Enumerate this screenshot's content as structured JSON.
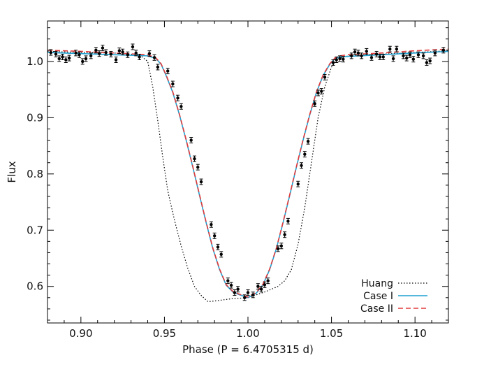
{
  "chart_data": {
    "type": "scatter",
    "title": "",
    "xlabel": "Phase (P = 6.4705315 d)",
    "ylabel": "Flux",
    "xlim": [
      0.88,
      1.12
    ],
    "ylim": [
      0.535,
      1.072
    ],
    "x_ticks": [
      0.9,
      0.95,
      1.0,
      1.05,
      1.1
    ],
    "x_tick_labels": [
      "0.90",
      "0.95",
      "1.00",
      "1.05",
      "1.10"
    ],
    "y_ticks": [
      0.6,
      0.7,
      0.8,
      0.9,
      1.0
    ],
    "y_tick_labels": [
      "0.6",
      "0.7",
      "0.8",
      "0.9",
      "1.0"
    ],
    "grid": false,
    "legend_position": "bottom-right",
    "series": [
      {
        "name": "Huang",
        "kind": "line",
        "style": "dotted",
        "color": "#000000",
        "x": [
          0.88,
          0.9,
          0.92,
          0.935,
          0.94,
          0.943,
          0.946,
          0.949,
          0.952,
          0.956,
          0.96,
          0.964,
          0.968,
          0.972,
          0.976,
          0.98,
          0.99,
          1.0,
          1.01,
          1.018,
          1.022,
          1.026,
          1.03,
          1.034,
          1.038,
          1.042,
          1.046,
          1.05,
          1.054,
          1.06,
          1.08,
          1.1,
          1.12
        ],
        "y": [
          1.018,
          1.016,
          1.015,
          1.012,
          1.0,
          0.955,
          0.895,
          0.83,
          0.77,
          0.718,
          0.672,
          0.632,
          0.6,
          0.584,
          0.573,
          0.574,
          0.578,
          0.58,
          0.59,
          0.6,
          0.61,
          0.63,
          0.675,
          0.74,
          0.82,
          0.9,
          0.955,
          0.99,
          1.005,
          1.01,
          1.013,
          1.016,
          1.019
        ]
      },
      {
        "name": "Case I",
        "kind": "line",
        "style": "solid",
        "color": "#1fa0d0",
        "x": [
          0.88,
          0.9,
          0.92,
          0.94,
          0.945,
          0.948,
          0.951,
          0.955,
          0.959,
          0.963,
          0.967,
          0.971,
          0.975,
          0.979,
          0.983,
          0.987,
          0.991,
          0.995,
          1.0,
          1.005,
          1.009,
          1.013,
          1.017,
          1.021,
          1.025,
          1.029,
          1.033,
          1.037,
          1.041,
          1.045,
          1.049,
          1.052,
          1.055,
          1.06,
          1.08,
          1.1,
          1.12
        ],
        "y": [
          1.016,
          1.014,
          1.012,
          1.01,
          1.005,
          0.995,
          0.975,
          0.945,
          0.905,
          0.86,
          0.812,
          0.762,
          0.713,
          0.667,
          0.63,
          0.602,
          0.59,
          0.585,
          0.58,
          0.588,
          0.603,
          0.63,
          0.667,
          0.713,
          0.762,
          0.812,
          0.86,
          0.905,
          0.945,
          0.975,
          0.995,
          1.005,
          1.008,
          1.009,
          1.012,
          1.015,
          1.018
        ]
      },
      {
        "name": "Case II",
        "kind": "line",
        "style": "dashed",
        "color": "#e23b3b",
        "x": [
          0.88,
          0.9,
          0.92,
          0.94,
          0.945,
          0.948,
          0.951,
          0.955,
          0.959,
          0.963,
          0.967,
          0.971,
          0.975,
          0.979,
          0.983,
          0.987,
          0.991,
          0.995,
          1.0,
          1.005,
          1.009,
          1.013,
          1.017,
          1.021,
          1.025,
          1.029,
          1.033,
          1.037,
          1.041,
          1.045,
          1.049,
          1.052,
          1.055,
          1.06,
          1.08,
          1.1,
          1.12
        ],
        "y": [
          1.02,
          1.018,
          1.015,
          1.012,
          1.006,
          0.996,
          0.976,
          0.946,
          0.906,
          0.861,
          0.813,
          0.763,
          0.714,
          0.668,
          0.631,
          0.603,
          0.591,
          0.586,
          0.581,
          0.589,
          0.604,
          0.631,
          0.668,
          0.714,
          0.763,
          0.813,
          0.861,
          0.906,
          0.946,
          0.976,
          0.996,
          1.006,
          1.01,
          1.012,
          1.015,
          1.019,
          1.022
        ]
      },
      {
        "name": "",
        "kind": "points",
        "color": "#000000",
        "x": [
          0.882,
          0.885,
          0.887,
          0.889,
          0.891,
          0.893,
          0.897,
          0.899,
          0.901,
          0.903,
          0.906,
          0.909,
          0.911,
          0.913,
          0.915,
          0.918,
          0.921,
          0.923,
          0.925,
          0.928,
          0.931,
          0.933,
          0.935,
          0.941,
          0.944,
          0.946,
          0.952,
          0.955,
          0.958,
          0.96,
          0.966,
          0.968,
          0.97,
          0.972,
          0.978,
          0.98,
          0.982,
          0.984,
          0.988,
          0.99,
          0.992,
          0.994,
          0.998,
          1.0,
          1.003,
          1.006,
          1.008,
          1.01,
          1.012,
          1.018,
          1.02,
          1.022,
          1.024,
          1.03,
          1.032,
          1.034,
          1.036,
          1.04,
          1.042,
          1.044,
          1.046,
          1.051,
          1.053,
          1.055,
          1.057,
          1.062,
          1.064,
          1.066,
          1.068,
          1.071,
          1.074,
          1.077,
          1.079,
          1.081,
          1.085,
          1.087,
          1.089,
          1.093,
          1.095,
          1.097,
          1.099,
          1.102,
          1.105,
          1.107,
          1.109,
          1.112,
          1.117
        ],
        "y": [
          1.016,
          1.013,
          1.005,
          1.008,
          1.003,
          1.006,
          1.015,
          1.012,
          1.0,
          1.005,
          1.01,
          1.02,
          1.014,
          1.024,
          1.016,
          1.013,
          1.003,
          1.019,
          1.017,
          1.012,
          1.026,
          1.015,
          1.008,
          1.014,
          1.007,
          0.99,
          0.983,
          0.96,
          0.935,
          0.92,
          0.86,
          0.827,
          0.812,
          0.786,
          0.71,
          0.69,
          0.67,
          0.657,
          0.61,
          0.602,
          0.589,
          0.595,
          0.58,
          0.589,
          0.585,
          0.6,
          0.595,
          0.603,
          0.61,
          0.667,
          0.672,
          0.692,
          0.716,
          0.782,
          0.815,
          0.835,
          0.858,
          0.925,
          0.944,
          0.947,
          0.972,
          0.998,
          1.003,
          1.005,
          1.004,
          1.01,
          1.017,
          1.015,
          1.01,
          1.018,
          1.007,
          1.013,
          1.008,
          1.008,
          1.022,
          1.005,
          1.022,
          1.01,
          1.006,
          1.012,
          1.004,
          1.012,
          1.01,
          0.998,
          1.001,
          1.015,
          1.02
        ]
      }
    ]
  }
}
